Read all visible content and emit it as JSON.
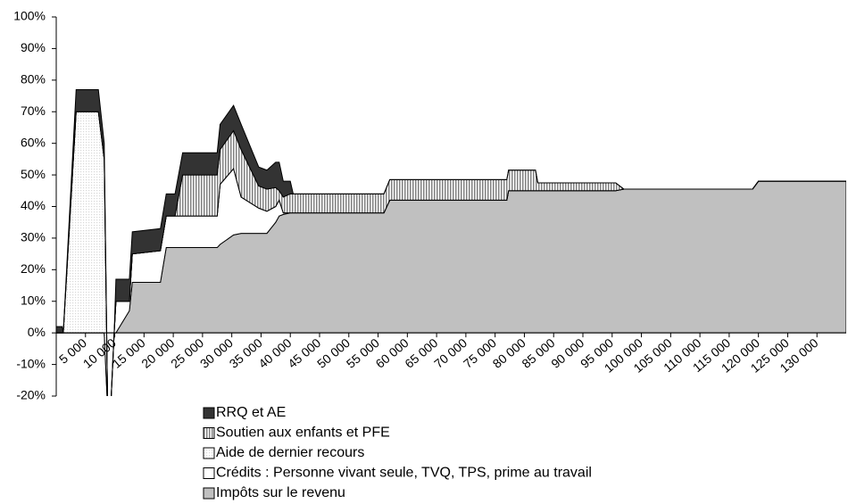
{
  "chart_data": {
    "type": "stacked_area",
    "x": [
      0,
      1000,
      1200,
      3400,
      7200,
      8200,
      8800,
      9400,
      9900,
      10200,
      12500,
      13000,
      17800,
      18800,
      20300,
      21600,
      27500,
      28000,
      30300,
      31600,
      34600,
      36000,
      37500,
      38100,
      38800,
      40000,
      40500,
      56000,
      57000,
      77000,
      77300,
      81900,
      82300,
      95600,
      97000,
      119000,
      120000,
      135000
    ],
    "series": [
      {
        "name": "Impôts sur le revenu",
        "color": "#c0c0c0",
        "pattern": "solid",
        "values": [
          0,
          0,
          0,
          0,
          0,
          0,
          0,
          0,
          0,
          0,
          7,
          16,
          16,
          27,
          27,
          27,
          27,
          28,
          31,
          31.5,
          31.5,
          31.5,
          35,
          37,
          37.5,
          38,
          38,
          38,
          42,
          42,
          45,
          45,
          45,
          45,
          45.5,
          45.5,
          48,
          48
        ]
      },
      {
        "name": "Crédits : Personne vivant seule, TVQ, TPS, prime au travail",
        "color": "#ffffff",
        "pattern": "solid",
        "values": [
          0,
          0,
          0,
          0,
          0,
          0,
          -25,
          -20,
          0,
          10,
          3,
          9,
          10,
          10,
          10,
          10,
          10,
          19,
          21,
          11.5,
          8,
          7,
          5,
          5,
          0.5,
          0,
          0,
          0,
          0,
          0,
          0,
          0,
          0,
          0,
          0,
          0,
          0,
          0
        ]
      },
      {
        "name": "Aide de dernier recours",
        "color": "#d8d8d8",
        "pattern": "dots",
        "values": [
          0,
          0,
          0,
          70,
          70,
          55,
          0,
          0,
          0,
          0,
          0,
          0,
          0,
          0,
          0,
          0,
          0,
          0,
          0,
          0,
          0,
          0,
          0,
          0,
          0,
          0,
          0,
          0,
          0,
          0,
          0,
          0,
          0,
          0,
          0,
          0,
          0,
          0
        ]
      },
      {
        "name": "Soutien aux enfants et PFE",
        "color": "#808080",
        "pattern": "stripes",
        "values": [
          0,
          0,
          0,
          0,
          0,
          0,
          0,
          0,
          0,
          0,
          0,
          0,
          0,
          0,
          0,
          13,
          13,
          11,
          12,
          15,
          7,
          7,
          6,
          3,
          5,
          6,
          6,
          6,
          6.5,
          6.5,
          6.5,
          6.5,
          2.5,
          2.5,
          0,
          0,
          0,
          0
        ]
      },
      {
        "name": "RRQ et AE",
        "color": "#333333",
        "pattern": "solid",
        "values": [
          2,
          2,
          0,
          7,
          7,
          5,
          0,
          0,
          0,
          7,
          7,
          7,
          7,
          7,
          7,
          7,
          7,
          8,
          8,
          8,
          6,
          6,
          8,
          9,
          5,
          4,
          0,
          0,
          0,
          0,
          0,
          0,
          0,
          0,
          0,
          0,
          0,
          0
        ]
      }
    ],
    "xlim": [
      0,
      135000
    ],
    "xticks": [
      {
        "value": 5000,
        "label": "5 000"
      },
      {
        "value": 10000,
        "label": "10 000"
      },
      {
        "value": 15000,
        "label": "15 000"
      },
      {
        "value": 20000,
        "label": "20 000"
      },
      {
        "value": 25000,
        "label": "25 000"
      },
      {
        "value": 30000,
        "label": "30 000"
      },
      {
        "value": 35000,
        "label": "35 000"
      },
      {
        "value": 40000,
        "label": "40 000"
      },
      {
        "value": 45000,
        "label": "45 000"
      },
      {
        "value": 50000,
        "label": "50 000"
      },
      {
        "value": 55000,
        "label": "55 000"
      },
      {
        "value": 60000,
        "label": "60 000"
      },
      {
        "value": 65000,
        "label": "65 000"
      },
      {
        "value": 70000,
        "label": "70 000"
      },
      {
        "value": 75000,
        "label": "75 000"
      },
      {
        "value": 80000,
        "label": "80 000"
      },
      {
        "value": 85000,
        "label": "85 000"
      },
      {
        "value": 90000,
        "label": "90 000"
      },
      {
        "value": 95000,
        "label": "95 000"
      },
      {
        "value": 100000,
        "label": "100 000"
      },
      {
        "value": 105000,
        "label": "105 000"
      },
      {
        "value": 110000,
        "label": "110 000"
      },
      {
        "value": 115000,
        "label": "115 000"
      },
      {
        "value": 120000,
        "label": "120 000"
      },
      {
        "value": 125000,
        "label": "125 000"
      },
      {
        "value": 130000,
        "label": "130 000"
      }
    ],
    "ylim": [
      -20,
      100
    ],
    "yticks": [
      {
        "value": -20,
        "label": "-20%"
      },
      {
        "value": -10,
        "label": "-10%"
      },
      {
        "value": 0,
        "label": "0%"
      },
      {
        "value": 10,
        "label": "10%"
      },
      {
        "value": 20,
        "label": "20%"
      },
      {
        "value": 30,
        "label": "30%"
      },
      {
        "value": 40,
        "label": "40%"
      },
      {
        "value": 50,
        "label": "50%"
      },
      {
        "value": 60,
        "label": "60%"
      },
      {
        "value": 70,
        "label": "70%"
      },
      {
        "value": 80,
        "label": "80%"
      },
      {
        "value": 90,
        "label": "90%"
      },
      {
        "value": 100,
        "label": "100%"
      }
    ],
    "legend": "bottom",
    "legend_order": "reversed"
  }
}
